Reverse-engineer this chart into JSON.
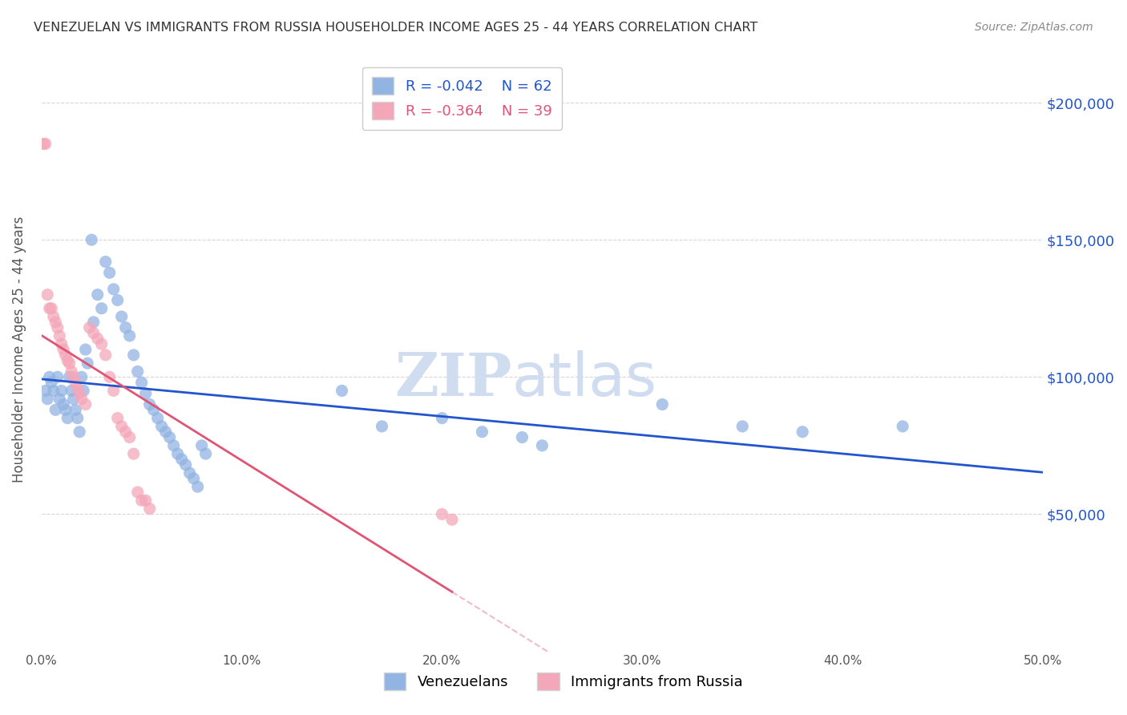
{
  "title": "VENEZUELAN VS IMMIGRANTS FROM RUSSIA HOUSEHOLDER INCOME AGES 25 - 44 YEARS CORRELATION CHART",
  "source": "Source: ZipAtlas.com",
  "ylabel": "Householder Income Ages 25 - 44 years",
  "xlim": [
    0.0,
    0.5
  ],
  "ylim": [
    0,
    220000
  ],
  "yticks": [
    0,
    50000,
    100000,
    150000,
    200000
  ],
  "ytick_labels": [
    "",
    "$50,000",
    "$100,000",
    "$150,000",
    "$200,000"
  ],
  "watermark_top": "ZIP",
  "watermark_bot": "atlas",
  "legend_blue_r": "-0.042",
  "legend_blue_n": "62",
  "legend_pink_r": "-0.364",
  "legend_pink_n": "39",
  "blue_color": "#92b4e3",
  "pink_color": "#f4a7b9",
  "blue_line_color": "#2255cc",
  "pink_line_color": "#e05575",
  "blue_scatter": [
    [
      0.002,
      95000
    ],
    [
      0.003,
      92000
    ],
    [
      0.004,
      100000
    ],
    [
      0.005,
      98000
    ],
    [
      0.006,
      95000
    ],
    [
      0.007,
      88000
    ],
    [
      0.008,
      100000
    ],
    [
      0.009,
      92000
    ],
    [
      0.01,
      95000
    ],
    [
      0.011,
      90000
    ],
    [
      0.012,
      88000
    ],
    [
      0.013,
      85000
    ],
    [
      0.014,
      100000
    ],
    [
      0.015,
      95000
    ],
    [
      0.016,
      92000
    ],
    [
      0.017,
      88000
    ],
    [
      0.018,
      85000
    ],
    [
      0.019,
      80000
    ],
    [
      0.02,
      100000
    ],
    [
      0.021,
      95000
    ],
    [
      0.022,
      110000
    ],
    [
      0.023,
      105000
    ],
    [
      0.025,
      150000
    ],
    [
      0.026,
      120000
    ],
    [
      0.028,
      130000
    ],
    [
      0.03,
      125000
    ],
    [
      0.032,
      142000
    ],
    [
      0.034,
      138000
    ],
    [
      0.036,
      132000
    ],
    [
      0.038,
      128000
    ],
    [
      0.04,
      122000
    ],
    [
      0.042,
      118000
    ],
    [
      0.044,
      115000
    ],
    [
      0.046,
      108000
    ],
    [
      0.048,
      102000
    ],
    [
      0.05,
      98000
    ],
    [
      0.052,
      94000
    ],
    [
      0.054,
      90000
    ],
    [
      0.056,
      88000
    ],
    [
      0.058,
      85000
    ],
    [
      0.06,
      82000
    ],
    [
      0.062,
      80000
    ],
    [
      0.064,
      78000
    ],
    [
      0.066,
      75000
    ],
    [
      0.068,
      72000
    ],
    [
      0.07,
      70000
    ],
    [
      0.072,
      68000
    ],
    [
      0.074,
      65000
    ],
    [
      0.076,
      63000
    ],
    [
      0.078,
      60000
    ],
    [
      0.08,
      75000
    ],
    [
      0.082,
      72000
    ],
    [
      0.15,
      95000
    ],
    [
      0.17,
      82000
    ],
    [
      0.2,
      85000
    ],
    [
      0.22,
      80000
    ],
    [
      0.24,
      78000
    ],
    [
      0.25,
      75000
    ],
    [
      0.31,
      90000
    ],
    [
      0.35,
      82000
    ],
    [
      0.38,
      80000
    ],
    [
      0.43,
      82000
    ]
  ],
  "pink_scatter": [
    [
      0.001,
      185000
    ],
    [
      0.002,
      185000
    ],
    [
      0.003,
      130000
    ],
    [
      0.004,
      125000
    ],
    [
      0.005,
      125000
    ],
    [
      0.006,
      122000
    ],
    [
      0.007,
      120000
    ],
    [
      0.008,
      118000
    ],
    [
      0.009,
      115000
    ],
    [
      0.01,
      112000
    ],
    [
      0.011,
      110000
    ],
    [
      0.012,
      108000
    ],
    [
      0.013,
      106000
    ],
    [
      0.014,
      105000
    ],
    [
      0.015,
      102000
    ],
    [
      0.016,
      100000
    ],
    [
      0.017,
      98000
    ],
    [
      0.018,
      96000
    ],
    [
      0.019,
      94000
    ],
    [
      0.02,
      92000
    ],
    [
      0.022,
      90000
    ],
    [
      0.024,
      118000
    ],
    [
      0.026,
      116000
    ],
    [
      0.028,
      114000
    ],
    [
      0.03,
      112000
    ],
    [
      0.032,
      108000
    ],
    [
      0.034,
      100000
    ],
    [
      0.036,
      95000
    ],
    [
      0.038,
      85000
    ],
    [
      0.04,
      82000
    ],
    [
      0.042,
      80000
    ],
    [
      0.044,
      78000
    ],
    [
      0.046,
      72000
    ],
    [
      0.048,
      58000
    ],
    [
      0.05,
      55000
    ],
    [
      0.052,
      55000
    ],
    [
      0.054,
      52000
    ],
    [
      0.2,
      50000
    ],
    [
      0.205,
      48000
    ]
  ],
  "background_color": "#ffffff",
  "grid_color": "#cccccc",
  "title_color": "#333333",
  "axis_label_color": "#555555",
  "ytick_color": "#2255cc",
  "watermark_color": "#d0ddf0",
  "legend_border_color": "#cccccc"
}
